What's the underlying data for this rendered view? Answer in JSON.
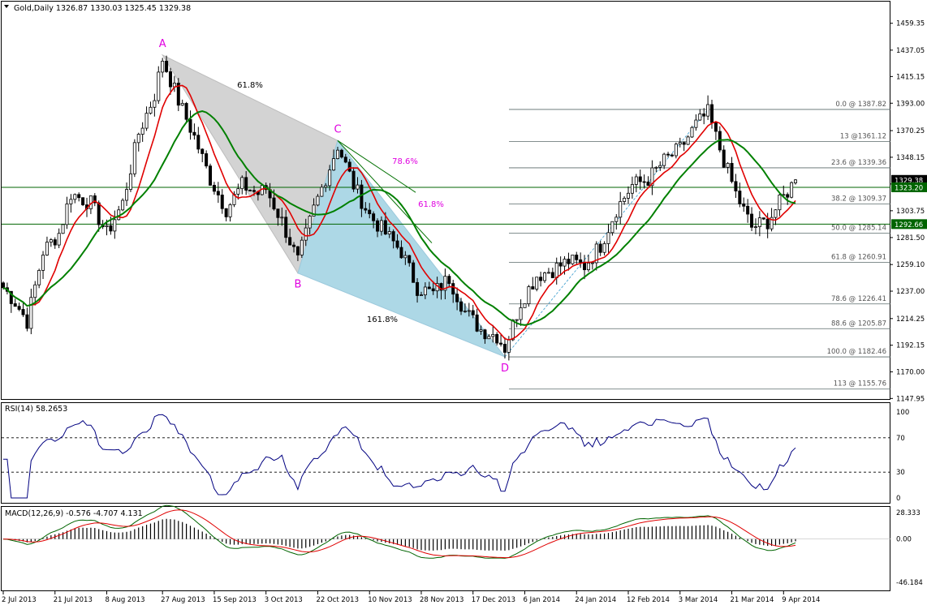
{
  "window": {
    "header": "Gold,Daily  1326.87 1330.03 1325.45 1329.38"
  },
  "chart_data": [
    {
      "type": "candlestick",
      "name": "price",
      "symbol": "Gold",
      "timeframe": "Daily",
      "ohlc_last": {
        "open": 1326.87,
        "high": 1330.03,
        "low": 1325.45,
        "close": 1329.38
      },
      "ylim": [
        1140,
        1470
      ],
      "y_ticks": [
        "1459.35",
        "1437.05",
        "1415.15",
        "1393.00",
        "1370.25",
        "1348.15",
        "1325.95",
        "1303.75",
        "1281.50",
        "1259.10",
        "1237.00",
        "1214.25",
        "1192.15",
        "1170.00",
        "1147.95"
      ],
      "x_ticks": [
        "2 Jul 2013",
        "21 Jul 2013",
        "8 Aug 2013",
        "27 Aug 2013",
        "15 Sep 2013",
        "3 Oct 2013",
        "22 Oct 2013",
        "10 Nov 2013",
        "28 Nov 2013",
        "17 Dec 2013",
        "6 Jan 2014",
        "24 Jan 2014",
        "12 Feb 2014",
        "3 Mar 2014",
        "21 Mar 2014",
        "9 Apr 2014"
      ],
      "price_labels": [
        {
          "text": "1329.38",
          "value": 1329.38,
          "style": "dark"
        },
        {
          "text": "1323.20",
          "value": 1323.2,
          "style": "green"
        },
        {
          "text": "1292.66",
          "value": 1292.66,
          "style": "green"
        }
      ],
      "horizontal_lines": [
        1323.2,
        1292.66
      ],
      "fibonacci_levels": [
        {
          "label": "0.0 @ 1387.82",
          "value": 1387.82
        },
        {
          "label": "13 @1361.12",
          "value": 1361.12
        },
        {
          "label": "23.6 @ 1339.36",
          "value": 1339.36
        },
        {
          "label": "38.2 @ 1309.37",
          "value": 1309.37
        },
        {
          "label": "50.0 @ 1285.14",
          "value": 1285.14
        },
        {
          "label": "61.8 @ 1260.91",
          "value": 1260.91
        },
        {
          "label": "78.6 @ 1226.41",
          "value": 1226.41
        },
        {
          "label": "88.6 @ 1205.87",
          "value": 1205.87
        },
        {
          "label": "100.0 @ 1182.46",
          "value": 1182.46
        },
        {
          "label": "113 @ 1155.76",
          "value": 1155.76
        }
      ],
      "pattern_points": [
        {
          "label": "A",
          "date": "28 Aug 2013",
          "value": 1433
        },
        {
          "label": "B",
          "date": "15 Oct 2013",
          "value": 1252
        },
        {
          "label": "C",
          "date": "28 Oct 2013",
          "value": 1362
        },
        {
          "label": "D",
          "date": "31 Dec 2013",
          "value": 1182.5
        }
      ],
      "pattern_ratios": [
        "61.8%",
        "78.6%",
        "61.8%",
        "161.8%"
      ],
      "moving_averages": [
        {
          "color": "#e00000",
          "desc": "fast MA"
        },
        {
          "color": "#008000",
          "desc": "slow MA"
        }
      ]
    },
    {
      "type": "line",
      "name": "RSI",
      "header": "RSI(14) 58.2653",
      "ylim": [
        0,
        100
      ],
      "y_ticks": [
        "100",
        "70",
        "30",
        "0"
      ],
      "levels": [
        70,
        30
      ],
      "last": 58.2653
    },
    {
      "type": "histogram+line",
      "name": "MACD",
      "header": "MACD(12,26,9) -0.576 -4.707 4.131",
      "ylim": [
        -46.184,
        28.333
      ],
      "y_ticks": [
        "28.333",
        "0.00",
        "-46.184"
      ],
      "values": {
        "macd": -0.576,
        "signal": -4.707,
        "histogram": 4.131
      }
    }
  ]
}
